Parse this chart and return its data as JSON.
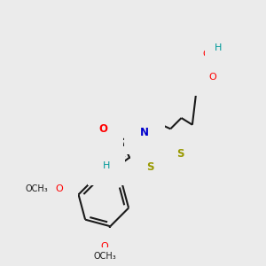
{
  "background_color": "#ebebeb",
  "figsize": [
    3.0,
    3.0
  ],
  "dpi": 100,
  "bond_color": "#1a1a1a",
  "bond_width": 1.5,
  "dbo": 0.016,
  "colors": {
    "O": "#ff0000",
    "N": "#0000cc",
    "S": "#999900",
    "H": "#009999",
    "C": "#1a1a1a"
  }
}
